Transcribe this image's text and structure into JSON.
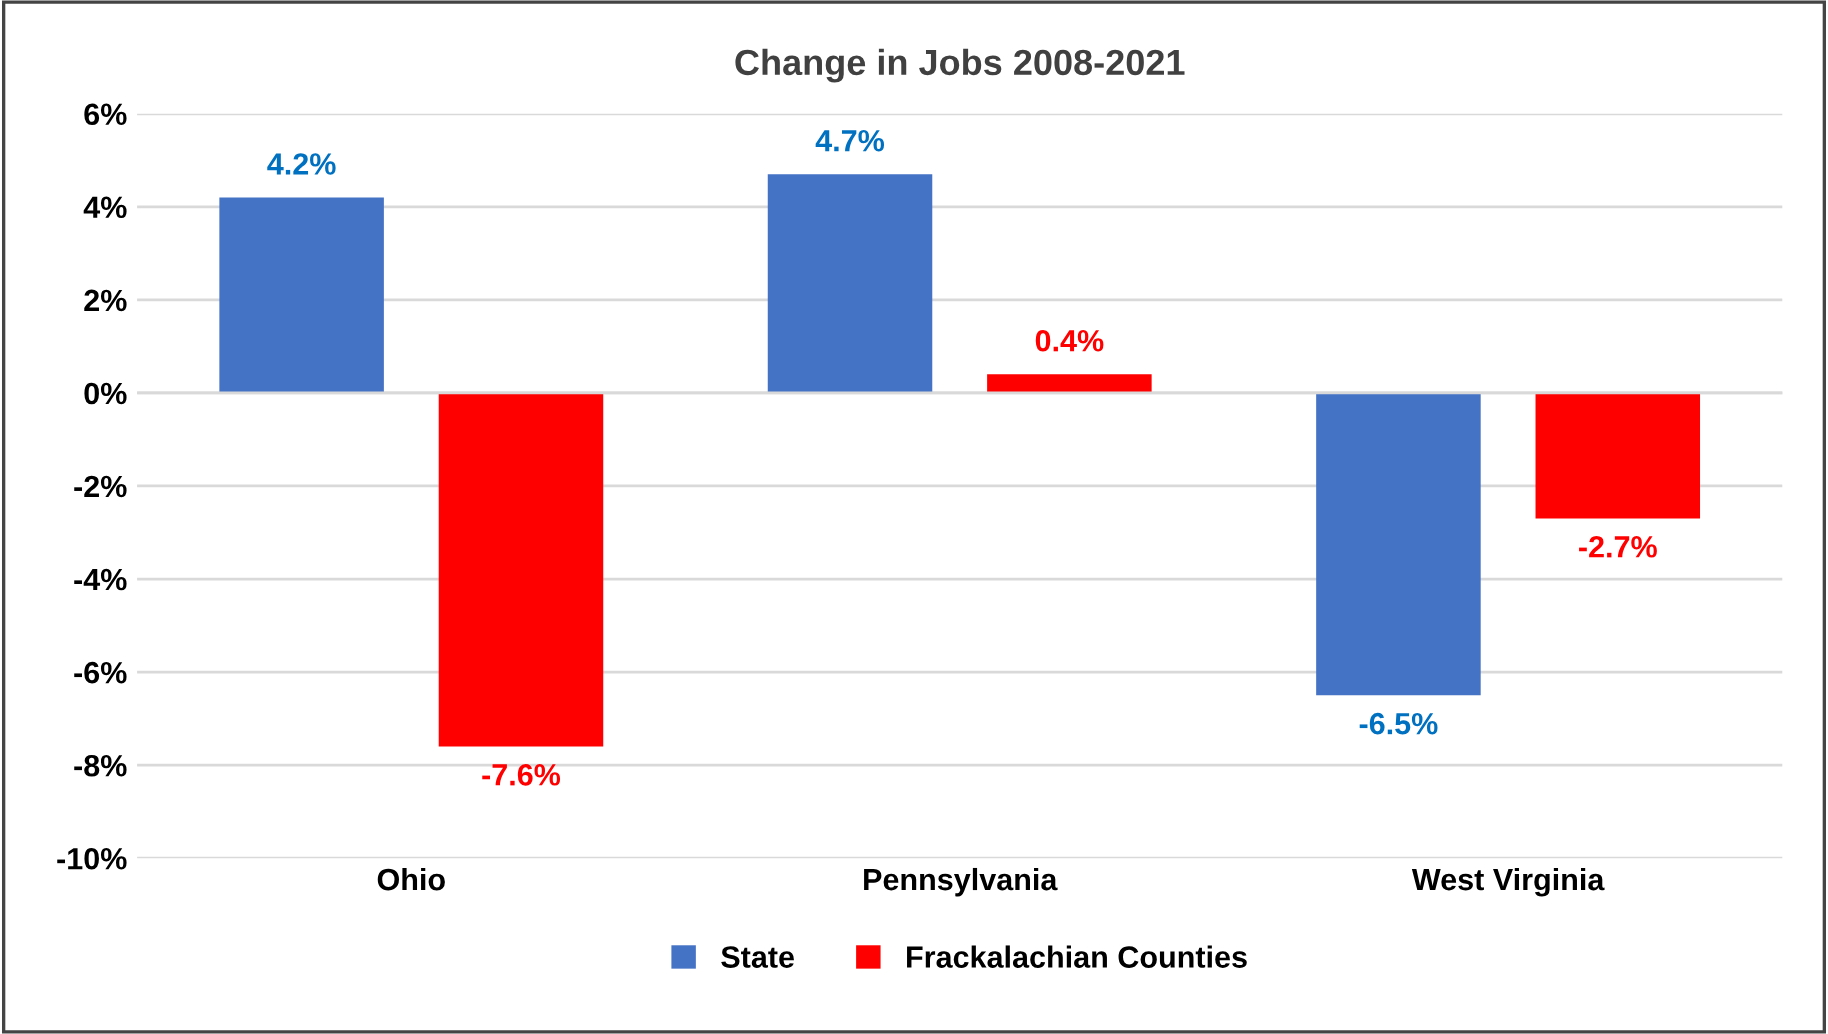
{
  "chart_data": {
    "type": "bar",
    "title": "Change in Jobs 2008-2021",
    "categories": [
      "Ohio",
      "Pennsylvania",
      "West Virginia"
    ],
    "series": [
      {
        "name": "State",
        "color": "#4472c4",
        "values": [
          4.2,
          4.7,
          -6.5
        ],
        "value_labels": [
          "4.2%",
          "4.7%",
          "-6.5%"
        ]
      },
      {
        "name": "Frackalachian Counties",
        "color": "#ff0000",
        "values": [
          -7.6,
          0.4,
          -2.7
        ],
        "value_labels": [
          "-7.6%",
          "0.4%",
          "-2.7%"
        ]
      }
    ],
    "ylim": [
      -10,
      6
    ],
    "yticks": [
      {
        "value": -10,
        "label": "-10%"
      },
      {
        "value": -8,
        "label": "-8%"
      },
      {
        "value": -6,
        "label": "-6%"
      },
      {
        "value": -4,
        "label": "-4%"
      },
      {
        "value": -2,
        "label": "-2%"
      },
      {
        "value": 0,
        "label": "0%"
      },
      {
        "value": 2,
        "label": "2%"
      },
      {
        "value": 4,
        "label": "4%"
      },
      {
        "value": 6,
        "label": "6%"
      }
    ],
    "grid": "y",
    "legend": "bottom"
  }
}
